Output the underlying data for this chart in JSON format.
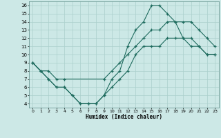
{
  "xlabel": "Humidex (Indice chaleur)",
  "bg_color": "#cce8e6",
  "grid_color": "#aacfcc",
  "line_color": "#1e6b5e",
  "xlim": [
    -0.5,
    23.5
  ],
  "ylim": [
    3.5,
    16.5
  ],
  "xticks": [
    0,
    1,
    2,
    3,
    4,
    5,
    6,
    7,
    8,
    9,
    10,
    11,
    12,
    13,
    14,
    15,
    16,
    17,
    18,
    19,
    20,
    21,
    22,
    23
  ],
  "yticks": [
    4,
    5,
    6,
    7,
    8,
    9,
    10,
    11,
    12,
    13,
    14,
    15,
    16
  ],
  "line1_x": [
    0,
    1,
    2,
    3,
    4,
    9,
    10,
    11,
    12,
    13,
    14,
    15,
    16,
    17,
    18,
    19,
    20,
    21,
    22,
    23
  ],
  "line1_y": [
    9,
    8,
    8,
    7,
    7,
    7,
    8,
    9,
    10,
    11,
    12,
    13,
    13,
    14,
    14,
    14,
    14,
    13,
    12,
    11
  ],
  "line2_x": [
    0,
    1,
    2,
    3,
    4,
    5,
    6,
    7,
    8,
    9,
    10,
    11,
    12,
    13,
    14,
    15,
    16,
    17,
    18,
    19,
    20,
    21,
    22,
    23
  ],
  "line2_y": [
    9,
    8,
    7,
    6,
    6,
    5,
    4,
    4,
    4,
    5,
    7,
    8,
    11,
    13,
    14,
    16,
    16,
    15,
    14,
    12,
    11,
    11,
    10,
    10
  ],
  "line3_x": [
    0,
    1,
    2,
    3,
    4,
    5,
    6,
    7,
    8,
    9,
    10,
    11,
    12,
    13,
    14,
    15,
    16,
    17,
    18,
    19,
    20,
    21,
    22,
    23
  ],
  "line3_y": [
    9,
    8,
    7,
    6,
    6,
    5,
    4,
    4,
    4,
    5,
    6,
    7,
    8,
    10,
    11,
    11,
    11,
    12,
    12,
    12,
    12,
    11,
    10,
    10
  ]
}
